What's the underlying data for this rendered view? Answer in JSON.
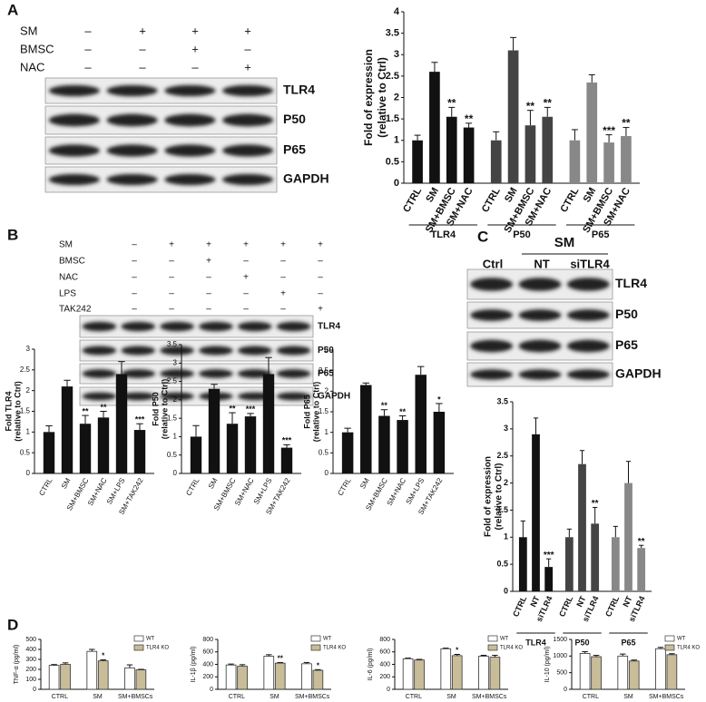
{
  "panels": [
    "A",
    "B",
    "C",
    "D"
  ],
  "blots": [
    {
      "conditions": [
        {
          "name": "SM",
          "signs": [
            "–",
            "+",
            "+",
            "+"
          ]
        },
        {
          "name": "BMSC",
          "signs": [
            "–",
            "–",
            "+",
            "–"
          ]
        },
        {
          "name": "NAC",
          "signs": [
            "–",
            "–",
            "–",
            "+"
          ]
        }
      ],
      "rows": [
        "TLR4",
        "P50",
        "P65",
        "GAPDH"
      ]
    },
    {
      "conditions": [
        {
          "name": "SM",
          "signs": [
            "–",
            "+",
            "+",
            "+",
            "+",
            "+"
          ]
        },
        {
          "name": "BMSC",
          "signs": [
            "–",
            "–",
            "+",
            "–",
            "–",
            "–"
          ]
        },
        {
          "name": "NAC",
          "signs": [
            "–",
            "–",
            "–",
            "+",
            "–",
            "–"
          ]
        },
        {
          "name": "LPS",
          "signs": [
            "–",
            "–",
            "–",
            "–",
            "+",
            "–"
          ]
        },
        {
          "name": "TAK242",
          "signs": [
            "–",
            "–",
            "–",
            "–",
            "–",
            "+"
          ]
        }
      ],
      "rows": [
        "TLR4",
        "P50",
        "P65",
        "GAPDH"
      ]
    },
    {
      "group_label": "SM",
      "lanes": [
        "Ctrl",
        "NT",
        "siTLR4"
      ],
      "rows": [
        "TLR4",
        "P50",
        "P65",
        "GAPDH"
      ]
    }
  ],
  "chart_data": [
    {
      "type": "bar",
      "ylabel": [
        "Fold of expression",
        "(relative to Ctrl)"
      ],
      "ylim": [
        0,
        4
      ],
      "yticks": [
        0,
        0.5,
        1,
        1.5,
        2,
        2.5,
        3,
        3.5,
        4
      ],
      "groups": [
        {
          "name": "TLR4",
          "color": "#111111",
          "categories": [
            "CTRL",
            "SM",
            "SM+BMSC",
            "SM+NAC"
          ],
          "values": [
            1.0,
            2.6,
            1.55,
            1.3
          ],
          "errors": [
            0.12,
            0.22,
            0.22,
            0.1
          ],
          "annotations": [
            null,
            null,
            "**",
            "**"
          ]
        },
        {
          "name": "P50",
          "color": "#444444",
          "categories": [
            "CTRL",
            "SM",
            "SM+BMSC",
            "SM+NAC"
          ],
          "values": [
            1.0,
            3.1,
            1.35,
            1.55
          ],
          "errors": [
            0.2,
            0.3,
            0.35,
            0.22
          ],
          "annotations": [
            null,
            null,
            "**",
            "**"
          ]
        },
        {
          "name": "P65",
          "color": "#888888",
          "categories": [
            "CTRL",
            "SM",
            "SM+BMSC",
            "SM+NAC"
          ],
          "values": [
            1.0,
            2.35,
            0.95,
            1.1
          ],
          "errors": [
            0.25,
            0.18,
            0.18,
            0.2
          ],
          "annotations": [
            null,
            null,
            "***",
            "**"
          ]
        }
      ]
    },
    {
      "type": "bar",
      "ylabel": [
        "Fold TLR4",
        "(relative to Ctrl)"
      ],
      "ylim": [
        0,
        3
      ],
      "yticks": [
        0,
        0.5,
        1,
        1.5,
        2,
        2.5,
        3
      ],
      "categories": [
        "CTRL",
        "SM",
        "SM+BMSC",
        "SM+NAC",
        "SM+LPS",
        "SM+TAK242"
      ],
      "color": "#111111",
      "values": [
        1.0,
        2.1,
        1.2,
        1.35,
        2.4,
        1.05
      ],
      "errors": [
        0.15,
        0.15,
        0.2,
        0.15,
        0.3,
        0.15
      ],
      "annotations": [
        null,
        null,
        "**",
        "**",
        null,
        "***"
      ]
    },
    {
      "type": "bar",
      "ylabel": [
        "Fold P50",
        "(relative to Ctrl)"
      ],
      "ylim": [
        0,
        3.5
      ],
      "yticks": [
        0,
        0.5,
        1,
        1.5,
        2,
        2.5,
        3,
        3.5
      ],
      "categories": [
        "CTRL",
        "SM",
        "SM+BMSC",
        "SM+NAC",
        "SM+LPS",
        "SM+TAK242"
      ],
      "color": "#111111",
      "values": [
        1.0,
        2.3,
        1.35,
        1.55,
        2.7,
        0.7
      ],
      "errors": [
        0.3,
        0.12,
        0.3,
        0.08,
        0.45,
        0.08
      ],
      "annotations": [
        null,
        null,
        "**",
        "***",
        null,
        "***"
      ]
    },
    {
      "type": "bar",
      "ylabel": [
        "Fold P65",
        "(relative to Ctrl)"
      ],
      "ylim": [
        0,
        3
      ],
      "yticks": [
        0,
        0.5,
        1,
        1.5,
        2,
        2.5,
        3
      ],
      "categories": [
        "CTRL",
        "SM",
        "SM+BMSC",
        "SM+NAC",
        "SM+LPS",
        "SM+TAK242"
      ],
      "color": "#111111",
      "values": [
        1.0,
        2.15,
        1.4,
        1.3,
        2.4,
        1.5
      ],
      "errors": [
        0.1,
        0.05,
        0.15,
        0.1,
        0.2,
        0.2
      ],
      "annotations": [
        null,
        null,
        "**",
        "**",
        null,
        "*"
      ]
    },
    {
      "type": "bar",
      "ylabel": [
        "Fold of expression",
        "(relative to Ctrl)"
      ],
      "ylim": [
        0,
        3.5
      ],
      "yticks": [
        0,
        0.5,
        1,
        1.5,
        2,
        2.5,
        3,
        3.5
      ],
      "groups": [
        {
          "name": "TLR4",
          "color": "#111111",
          "categories": [
            "CTRL",
            "NT",
            "siTLR4"
          ],
          "values": [
            1.0,
            2.9,
            0.45
          ],
          "errors": [
            0.3,
            0.3,
            0.15
          ],
          "annotations": [
            null,
            null,
            "***"
          ]
        },
        {
          "name": "P50",
          "color": "#444444",
          "categories": [
            "CTRL",
            "NT",
            "siTLR4"
          ],
          "values": [
            1.0,
            2.35,
            1.25
          ],
          "errors": [
            0.15,
            0.25,
            0.3
          ],
          "annotations": [
            null,
            null,
            "**"
          ]
        },
        {
          "name": "P65",
          "color": "#888888",
          "categories": [
            "CTRL",
            "NT",
            "siTLR4"
          ],
          "values": [
            1.0,
            2.0,
            0.8
          ],
          "errors": [
            0.2,
            0.4,
            0.05
          ],
          "annotations": [
            null,
            null,
            "**"
          ]
        }
      ]
    },
    {
      "type": "grouped_bar",
      "ylabel": "TNF-α (pg/ml)",
      "ylim": [
        0,
        500
      ],
      "yticks": [
        0,
        100,
        200,
        300,
        400,
        500
      ],
      "categories": [
        "CTRL",
        "SM",
        "SM+BMSCs"
      ],
      "series": [
        {
          "name": "WT",
          "color": "#ffffff",
          "values": [
            240,
            380,
            215
          ],
          "errors": [
            8,
            20,
            30
          ]
        },
        {
          "name": "TLR4 KO",
          "color": "#c8bd98",
          "values": [
            250,
            285,
            195
          ],
          "errors": [
            15,
            10,
            5
          ],
          "annotations": [
            null,
            "*",
            null
          ]
        }
      ]
    },
    {
      "type": "grouped_bar",
      "ylabel": "IL-1β (pg/ml)",
      "ylim": [
        0,
        800
      ],
      "yticks": [
        0,
        200,
        400,
        600,
        800
      ],
      "categories": [
        "CTRL",
        "SM",
        "SM+BMSCs"
      ],
      "series": [
        {
          "name": "WT",
          "color": "#ffffff",
          "values": [
            390,
            530,
            410
          ],
          "errors": [
            15,
            25,
            20
          ]
        },
        {
          "name": "TLR4 KO",
          "color": "#c8bd98",
          "values": [
            370,
            420,
            305
          ],
          "errors": [
            25,
            10,
            10
          ],
          "annotations": [
            null,
            "**",
            "*"
          ]
        }
      ]
    },
    {
      "type": "grouped_bar",
      "ylabel": "IL-6 (pg/ml)",
      "ylim": [
        0,
        800
      ],
      "yticks": [
        0,
        200,
        400,
        600,
        800
      ],
      "categories": [
        "CTRL",
        "SM",
        "SM+BMSCs"
      ],
      "series": [
        {
          "name": "WT",
          "color": "#ffffff",
          "values": [
            490,
            650,
            530
          ],
          "errors": [
            10,
            10,
            15
          ]
        },
        {
          "name": "TLR4 KO",
          "color": "#c8bd98",
          "values": [
            470,
            540,
            515
          ],
          "errors": [
            10,
            20,
            30
          ],
          "annotations": [
            null,
            "*",
            null
          ]
        }
      ]
    },
    {
      "type": "grouped_bar",
      "ylabel": "IL-10 (pg/ml)",
      "ylim": [
        0,
        1500
      ],
      "yticks": [
        0,
        500,
        1000,
        1500
      ],
      "categories": [
        "CTRL",
        "SM",
        "SM+BMSCs"
      ],
      "series": [
        {
          "name": "WT",
          "color": "#ffffff",
          "values": [
            1080,
            1000,
            1220
          ],
          "errors": [
            50,
            60,
            40
          ]
        },
        {
          "name": "TLR4 KO",
          "color": "#c8bd98",
          "values": [
            980,
            850,
            1040
          ],
          "errors": [
            40,
            30,
            30
          ]
        }
      ]
    }
  ]
}
